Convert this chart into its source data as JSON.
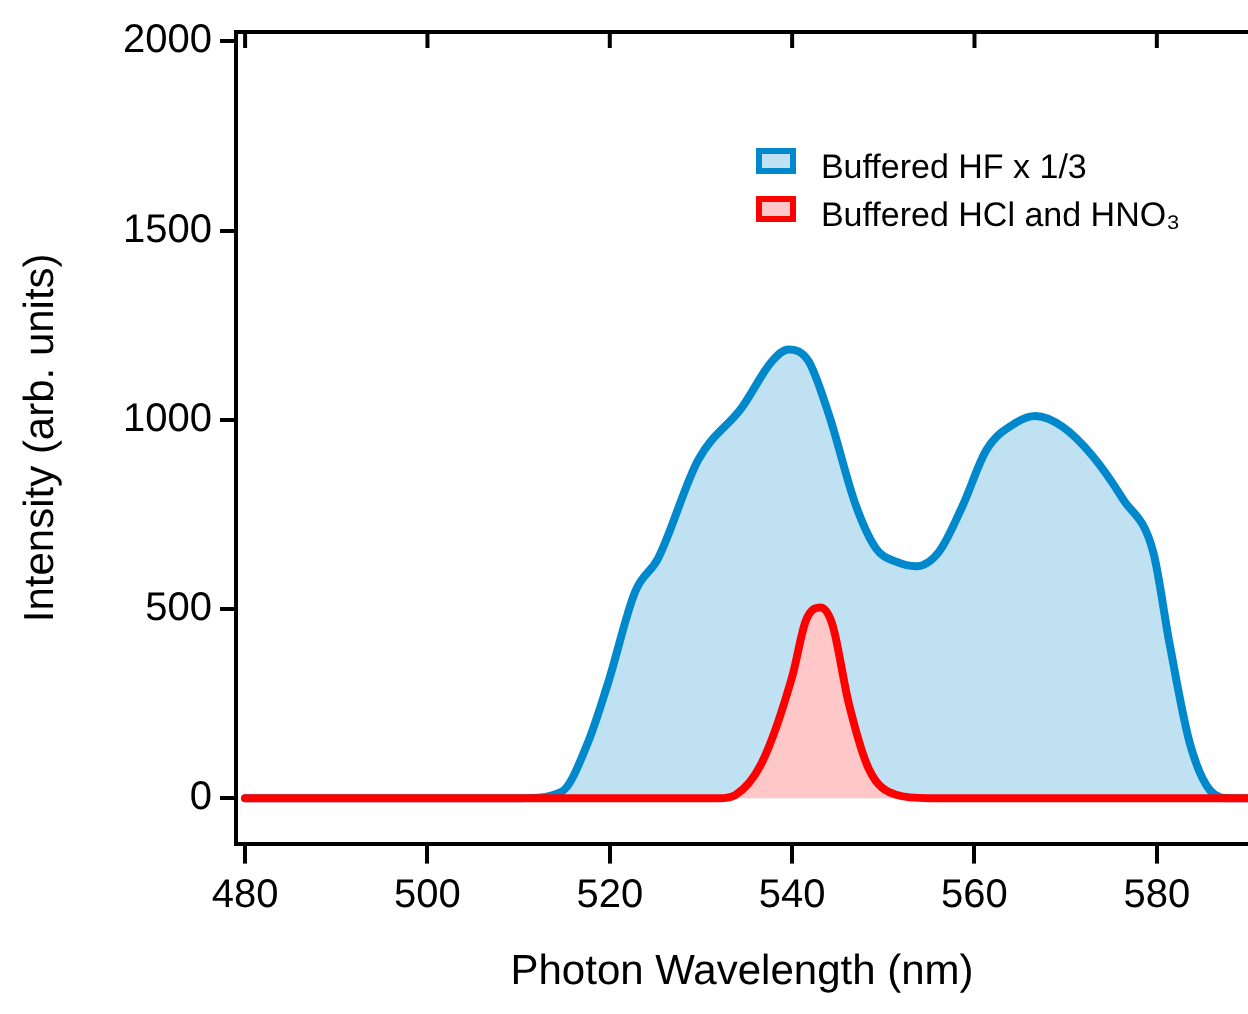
{
  "chart_data": {
    "type": "area",
    "xlabel": "Photon Wavelength (nm)",
    "ylabel": "Intensity (arb. units)",
    "xlim": [
      479,
      590
    ],
    "xticks": [
      480,
      500,
      520,
      540,
      560,
      580
    ],
    "ylim": [
      -120,
      2025
    ],
    "yticks": [
      0,
      500,
      1000,
      1500,
      2000
    ],
    "grid": false,
    "legend": "top right",
    "line_style": "solid",
    "marker": "none",
    "series": [
      {
        "name": "Buffered HF x 1/3",
        "color": "#0088cc",
        "x": [
          480,
          510.3,
          514.7,
          517.6,
          519.8,
          522.8,
          525.3,
          529.7,
          534.5,
          537.8,
          539.6,
          541.8,
          544.0,
          547.0,
          549.2,
          551.4,
          553.6,
          556.1,
          558.7,
          561.3,
          564.6,
          566.7,
          569.7,
          573.0,
          576.3,
          579.6,
          581.4,
          583.6,
          585.8,
          588.0,
          590
        ],
        "values": [
          0,
          0,
          17,
          147,
          304,
          547,
          634,
          894,
          1033,
          1155,
          1186,
          1155,
          1016,
          773,
          660,
          625,
          613,
          651,
          773,
          920,
          993,
          1010,
          981,
          903,
          790,
          651,
          408,
          147,
          22,
          0,
          0
        ]
      },
      {
        "name": "Buffered HCl and HNO₃",
        "color": "#ff0000",
        "x": [
          480,
          532,
          533.8,
          536.7,
          540.0,
          541.5,
          543.1,
          544.4,
          546.2,
          548.4,
          551.4,
          555.0,
          590
        ],
        "values": [
          0,
          0,
          9,
          95,
          321,
          469,
          504,
          460,
          252,
          78,
          9,
          0,
          0
        ]
      }
    ]
  }
}
